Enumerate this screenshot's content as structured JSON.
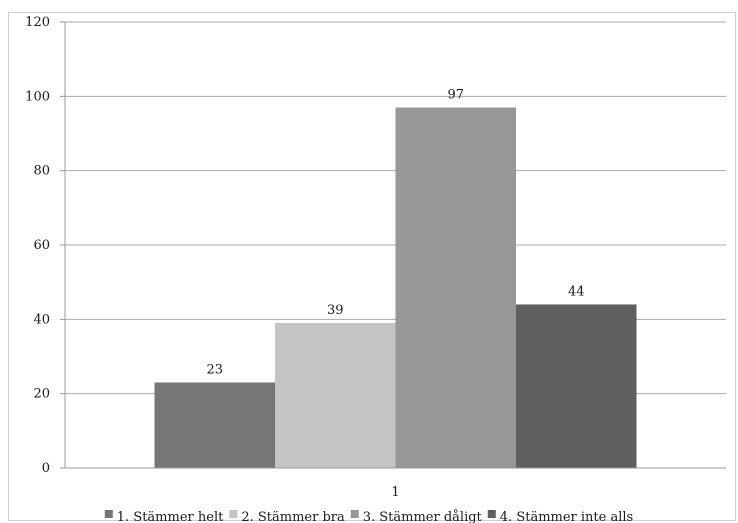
{
  "chart_data": {
    "type": "bar",
    "categories": [
      "1"
    ],
    "series": [
      {
        "name": "1. Stämmer helt",
        "values": [
          23
        ],
        "color": "#767676"
      },
      {
        "name": "2. Stämmer bra",
        "values": [
          39
        ],
        "color": "#c4c4c4"
      },
      {
        "name": "3. Stämmer dåligt",
        "values": [
          97
        ],
        "color": "#979797"
      },
      {
        "name": "4. Stämmer inte alls",
        "values": [
          44
        ],
        "color": "#5f5f5f"
      }
    ],
    "ylim": [
      0,
      120
    ],
    "yticks": [
      0,
      20,
      40,
      60,
      80,
      100,
      120
    ],
    "grid": true,
    "legend_position": "bottom",
    "data_labels": true
  }
}
